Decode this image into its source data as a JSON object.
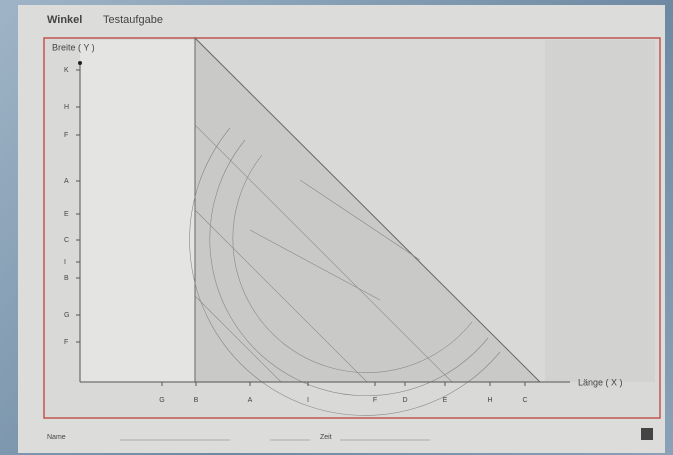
{
  "header": {
    "tabs": [
      "Winkel",
      "Testaufgabe"
    ]
  },
  "axes": {
    "y_label": "Breite ( Y )",
    "x_label": "Länge ( X )",
    "y_ticks": [
      "K",
      "H",
      "F",
      "A",
      "E",
      "C",
      "I",
      "B",
      "G",
      "F"
    ],
    "x_ticks": [
      "G",
      "B",
      "A",
      "I",
      "F",
      "D",
      "E",
      "H",
      "C"
    ]
  },
  "footer": {
    "name_label": "Name",
    "time_label": "Zeit"
  }
}
